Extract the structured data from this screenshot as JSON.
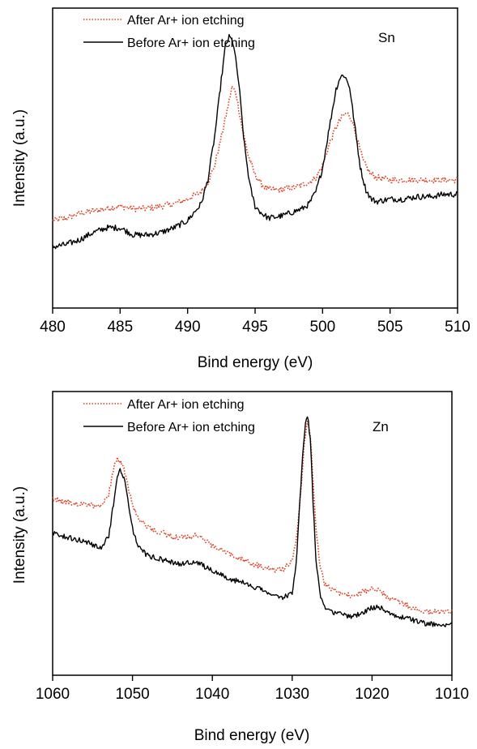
{
  "chart_data": [
    {
      "type": "line",
      "element_label": "Sn",
      "xlabel": "Bind energy (eV)",
      "ylabel": "Intensity (a.u.)",
      "xlim": [
        480,
        510
      ],
      "ylim": [
        0,
        1
      ],
      "x_reversed": false,
      "xticks": [
        480,
        485,
        490,
        495,
        500,
        505,
        510
      ],
      "xtick_labels": [
        "480",
        "485",
        "490",
        "495",
        "500",
        "505",
        "510"
      ],
      "legend_position": "top-left",
      "series": [
        {
          "name": "After Ar+ ion etching",
          "color": "#e03a1e",
          "style": "dotted",
          "x": [
            480,
            481,
            482,
            483,
            484,
            485,
            486,
            487,
            488,
            489,
            490,
            491,
            491.5,
            492,
            492.5,
            493,
            493.3,
            493.6,
            494,
            494.5,
            495,
            495.5,
            496,
            497,
            498,
            498.5,
            499,
            499.5,
            500,
            500.5,
            501,
            501.5,
            501.8,
            502.2,
            502.6,
            503,
            503.5,
            504,
            505,
            506,
            507,
            508,
            509,
            510
          ],
          "y": [
            0.23,
            0.24,
            0.26,
            0.27,
            0.28,
            0.29,
            0.28,
            0.28,
            0.29,
            0.3,
            0.32,
            0.35,
            0.39,
            0.46,
            0.58,
            0.71,
            0.79,
            0.76,
            0.63,
            0.5,
            0.42,
            0.38,
            0.36,
            0.36,
            0.37,
            0.38,
            0.39,
            0.41,
            0.46,
            0.55,
            0.62,
            0.67,
            0.68,
            0.65,
            0.56,
            0.48,
            0.43,
            0.41,
            0.4,
            0.4,
            0.4,
            0.4,
            0.4,
            0.4
          ]
        },
        {
          "name": "Before Ar+ ion etching",
          "color": "#000000",
          "style": "solid",
          "x": [
            480,
            481,
            482,
            483,
            484,
            485,
            486,
            487,
            488,
            489,
            490,
            491,
            491.5,
            492,
            492.5,
            492.8,
            493.1,
            493.4,
            493.8,
            494.2,
            494.6,
            495,
            495.5,
            496,
            497,
            498,
            498.5,
            499,
            499.5,
            500,
            500.5,
            501,
            501.3,
            501.6,
            502,
            502.4,
            502.8,
            503.2,
            503.6,
            504,
            505,
            506,
            507,
            508,
            509,
            510
          ],
          "y": [
            0.12,
            0.13,
            0.15,
            0.18,
            0.2,
            0.2,
            0.17,
            0.17,
            0.18,
            0.2,
            0.23,
            0.3,
            0.4,
            0.58,
            0.82,
            0.96,
            1.0,
            0.97,
            0.8,
            0.55,
            0.38,
            0.29,
            0.26,
            0.24,
            0.25,
            0.27,
            0.28,
            0.3,
            0.35,
            0.45,
            0.62,
            0.78,
            0.83,
            0.84,
            0.79,
            0.62,
            0.45,
            0.36,
            0.32,
            0.31,
            0.32,
            0.32,
            0.33,
            0.33,
            0.34,
            0.34
          ]
        }
      ]
    },
    {
      "type": "line",
      "element_label": "Zn",
      "xlabel": "Bind energy (eV)",
      "ylabel": "Intensity (a.u.)",
      "xlim": [
        1060,
        1010
      ],
      "ylim": [
        0,
        1
      ],
      "x_reversed": true,
      "xticks": [
        1060,
        1050,
        1040,
        1030,
        1020,
        1010
      ],
      "xtick_labels": [
        "1060",
        "1050",
        "1040",
        "1030",
        "1020",
        "1010"
      ],
      "legend_position": "top-left",
      "series": [
        {
          "name": "After Ar+ ion etching",
          "color": "#e03a1e",
          "style": "dotted",
          "x": [
            1060,
            1058,
            1056,
            1054,
            1053,
            1052.5,
            1052,
            1051.5,
            1051,
            1050.5,
            1050,
            1049.5,
            1049,
            1048,
            1047,
            1046,
            1045,
            1044,
            1043,
            1042,
            1041,
            1040,
            1038,
            1036,
            1034,
            1032,
            1031,
            1030,
            1029.5,
            1029,
            1028.5,
            1028.2,
            1028,
            1027.7,
            1027.4,
            1027,
            1026.5,
            1026,
            1025,
            1024,
            1023,
            1022,
            1021,
            1020,
            1019,
            1018,
            1017,
            1016,
            1015,
            1014,
            1013,
            1012,
            1011,
            1010
          ],
          "y": [
            0.61,
            0.59,
            0.58,
            0.57,
            0.62,
            0.73,
            0.8,
            0.79,
            0.74,
            0.66,
            0.58,
            0.53,
            0.5,
            0.47,
            0.45,
            0.44,
            0.42,
            0.42,
            0.42,
            0.43,
            0.41,
            0.38,
            0.34,
            0.31,
            0.28,
            0.26,
            0.27,
            0.31,
            0.4,
            0.6,
            0.86,
            0.96,
            0.98,
            0.9,
            0.7,
            0.45,
            0.28,
            0.2,
            0.17,
            0.15,
            0.14,
            0.14,
            0.16,
            0.17,
            0.16,
            0.13,
            0.11,
            0.1,
            0.08,
            0.07,
            0.06,
            0.06,
            0.06,
            0.06
          ]
        },
        {
          "name": "Before Ar+ ion etching",
          "color": "#000000",
          "style": "solid",
          "x": [
            1060,
            1058,
            1056,
            1054,
            1053,
            1052.5,
            1052,
            1051.5,
            1051,
            1050.5,
            1050,
            1049.5,
            1049,
            1048,
            1047,
            1046,
            1045,
            1044,
            1043,
            1042,
            1041,
            1040,
            1038,
            1036,
            1034,
            1032,
            1031,
            1030,
            1029.5,
            1029,
            1028.5,
            1028.2,
            1028,
            1027.7,
            1027.4,
            1027,
            1026.5,
            1026,
            1025,
            1024,
            1023,
            1022,
            1021,
            1020,
            1019,
            1018,
            1017,
            1016,
            1015,
            1014,
            1013,
            1012,
            1011,
            1010
          ],
          "y": [
            0.44,
            0.42,
            0.4,
            0.37,
            0.42,
            0.55,
            0.69,
            0.75,
            0.7,
            0.58,
            0.46,
            0.4,
            0.36,
            0.33,
            0.32,
            0.31,
            0.3,
            0.29,
            0.3,
            0.3,
            0.28,
            0.26,
            0.22,
            0.2,
            0.17,
            0.13,
            0.13,
            0.15,
            0.3,
            0.62,
            0.92,
            1.0,
            0.99,
            0.88,
            0.6,
            0.3,
            0.14,
            0.08,
            0.06,
            0.05,
            0.04,
            0.04,
            0.06,
            0.08,
            0.08,
            0.06,
            0.04,
            0.03,
            0.02,
            0.01,
            0.0,
            0.0,
            0.0,
            0.0
          ]
        }
      ]
    }
  ]
}
